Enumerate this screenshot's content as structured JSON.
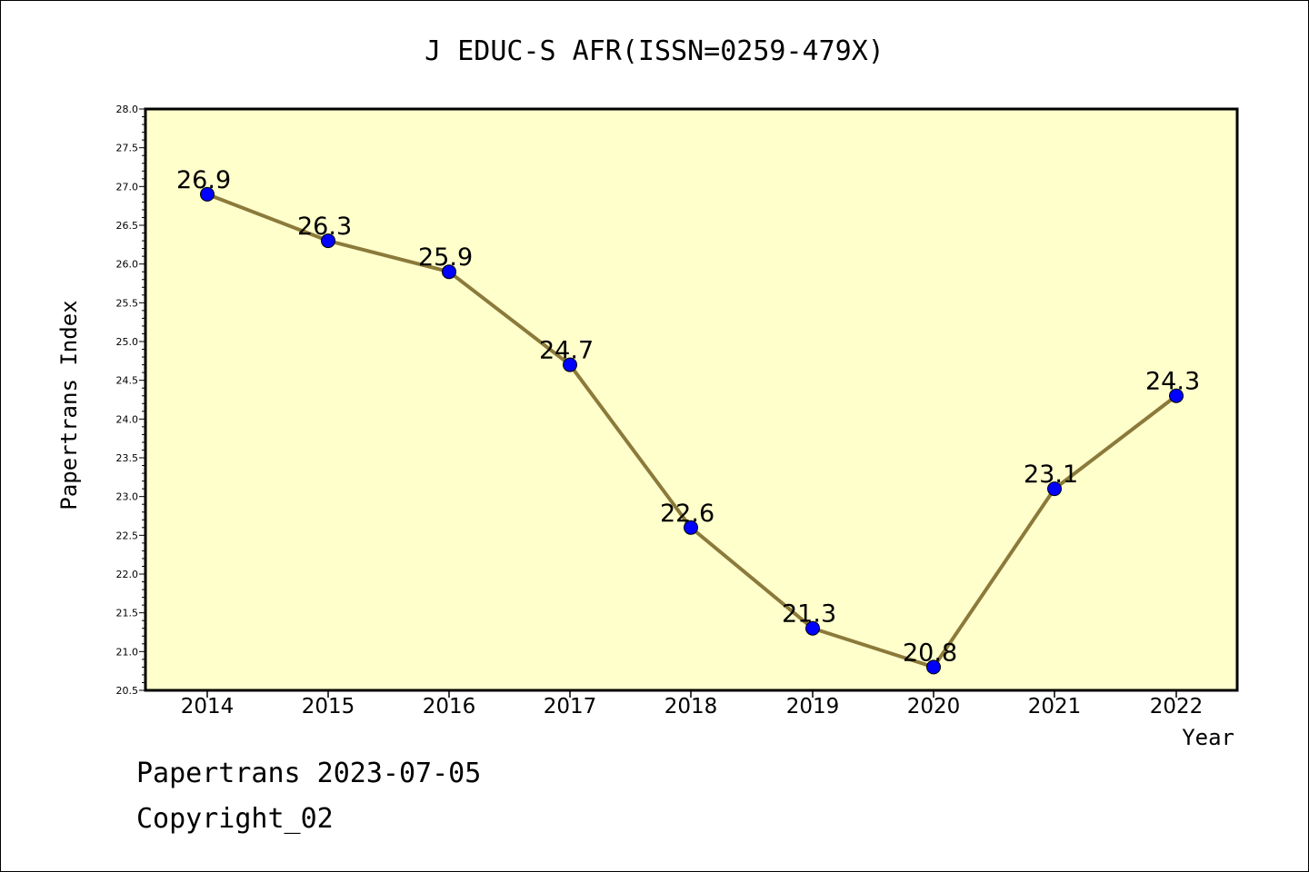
{
  "footer": {
    "date_line": "Papertrans 2023-07-05",
    "copyright": "Copyright_02"
  },
  "colors": {
    "plot_background": "#ffffcc",
    "line": "#8b7a3a",
    "marker": "#0000ff"
  },
  "chart_data": {
    "type": "line",
    "title": "J EDUC-S AFR(ISSN=0259-479X)",
    "xlabel": "Year",
    "ylabel": "Papertrans Index",
    "categories": [
      "2014",
      "2015",
      "2016",
      "2017",
      "2018",
      "2019",
      "2020",
      "2021",
      "2022"
    ],
    "values": [
      26.9,
      26.3,
      25.9,
      24.7,
      22.6,
      21.3,
      20.8,
      23.1,
      24.3
    ],
    "data_labels": [
      "26.9",
      "26.3",
      "25.9",
      "24.7",
      "22.6",
      "21.3",
      "20.8",
      "23.1",
      "24.3"
    ],
    "ylim": [
      20.5,
      28.0
    ],
    "yticks": [
      "20.5",
      "21.0",
      "21.5",
      "22.0",
      "22.5",
      "23.0",
      "23.5",
      "24.0",
      "24.5",
      "25.0",
      "25.5",
      "26.0",
      "26.5",
      "27.0",
      "27.5",
      "28.0"
    ],
    "grid": false,
    "legend": "none"
  }
}
